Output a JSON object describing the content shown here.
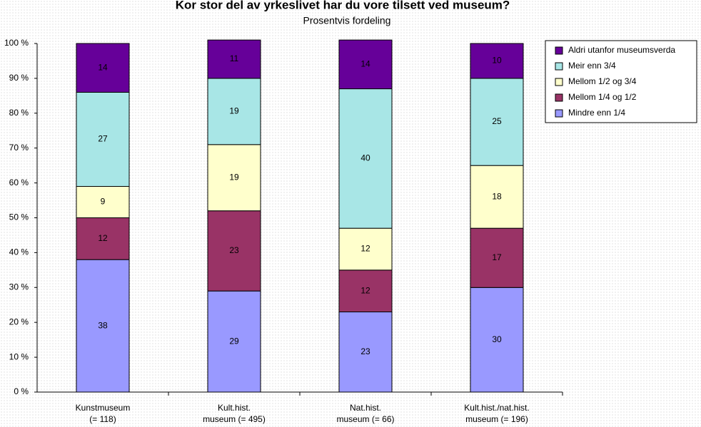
{
  "chart_data": {
    "type": "stacked_bar_100",
    "title": "Kor stor del av yrkeslivet har du vore tilsett ved museum?",
    "subtitle": "Prosentvis fordeling",
    "categories": [
      [
        "Kunstmuseum",
        "(= 118)"
      ],
      [
        "Kult.hist.",
        "museum (= 495)"
      ],
      [
        "Nat.hist.",
        "museum (= 66)"
      ],
      [
        "Kult.hist./nat.hist.",
        "museum (= 196)"
      ]
    ],
    "series": [
      {
        "name": "Mindre enn 1/4",
        "color": "#9999ff",
        "values": [
          38,
          29,
          23,
          30
        ]
      },
      {
        "name": "Mellom 1/4 og 1/2",
        "color": "#993366",
        "values": [
          12,
          23,
          12,
          17
        ]
      },
      {
        "name": "Mellom 1/2 og 3/4",
        "color": "#ffffcc",
        "values": [
          9,
          19,
          12,
          18
        ]
      },
      {
        "name": "Meir enn 3/4",
        "color": "#a8e6e6",
        "values": [
          27,
          19,
          40,
          25
        ]
      },
      {
        "name": "Aldri utanfor museumsverda",
        "color": "#660099",
        "values": [
          14,
          11,
          14,
          10
        ]
      }
    ],
    "ylim": [
      0,
      100
    ],
    "yticks": [
      {
        "value": 0,
        "label": "0 %"
      },
      {
        "value": 10,
        "label": "10 %"
      },
      {
        "value": 20,
        "label": "20 %"
      },
      {
        "value": 30,
        "label": "30 %"
      },
      {
        "value": 40,
        "label": "40 %"
      },
      {
        "value": 50,
        "label": "50 %"
      },
      {
        "value": 60,
        "label": "60 %"
      },
      {
        "value": 70,
        "label": "70 %"
      },
      {
        "value": 80,
        "label": "80 %"
      },
      {
        "value": 90,
        "label": "90 %"
      },
      {
        "value": 100,
        "label": "100 %"
      }
    ],
    "legend": "top-right"
  }
}
